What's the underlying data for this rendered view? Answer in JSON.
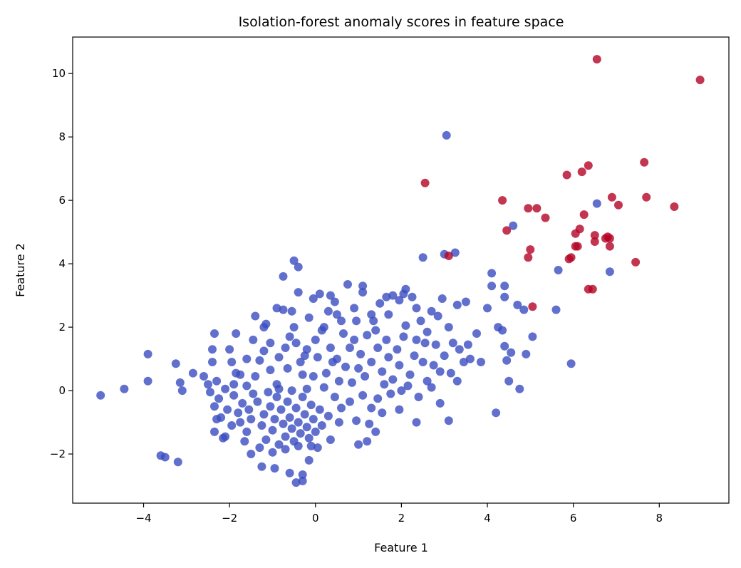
{
  "chart_data": {
    "type": "scatter",
    "title": "Isolation-forest anomaly scores in feature space",
    "xlabel": "Feature 1",
    "ylabel": "Feature 2",
    "xlim": [
      -5.65,
      9.62
    ],
    "ylim": [
      -3.55,
      11.15
    ],
    "xticks": [
      -4,
      -2,
      0,
      2,
      4,
      6,
      8
    ],
    "yticks": [
      -2,
      0,
      2,
      4,
      6,
      8,
      10
    ],
    "xtick_labels": [
      "−4",
      "−2",
      "0",
      "2",
      "4",
      "6",
      "8"
    ],
    "ytick_labels": [
      "−2",
      "0",
      "2",
      "4",
      "6",
      "8",
      "10"
    ],
    "grid": false,
    "legend": "none",
    "colors": {
      "normal": "#3b4cc0",
      "anomaly": "#b40426"
    },
    "series": [
      {
        "class": "normal",
        "color": "#3b4cc0",
        "points": [
          [
            -5.0,
            -0.15
          ],
          [
            -4.45,
            0.05
          ],
          [
            -3.9,
            1.15
          ],
          [
            -3.9,
            0.3
          ],
          [
            -3.6,
            -2.05
          ],
          [
            -3.5,
            -2.1
          ],
          [
            -3.25,
            0.85
          ],
          [
            -3.2,
            -2.25
          ],
          [
            -3.15,
            0.25
          ],
          [
            -3.1,
            0.0
          ],
          [
            -2.85,
            0.55
          ],
          [
            -2.6,
            0.45
          ],
          [
            -2.5,
            0.2
          ],
          [
            -2.4,
            1.3
          ],
          [
            -2.35,
            1.8
          ],
          [
            -2.4,
            0.9
          ],
          [
            -2.3,
            0.3
          ],
          [
            -2.45,
            -0.05
          ],
          [
            -2.35,
            -0.5
          ],
          [
            -2.3,
            -0.9
          ],
          [
            -2.35,
            -1.3
          ],
          [
            -2.15,
            -1.5
          ],
          [
            -2.0,
            1.3
          ],
          [
            -1.95,
            0.9
          ],
          [
            -1.9,
            0.2
          ],
          [
            -1.85,
            1.8
          ],
          [
            -1.75,
            0.5
          ],
          [
            -1.6,
            1.0
          ],
          [
            -1.45,
            1.6
          ],
          [
            -1.4,
            2.35
          ],
          [
            -1.2,
            2.0
          ],
          [
            -1.15,
            2.1
          ],
          [
            -1.05,
            1.5
          ],
          [
            -0.9,
            2.6
          ],
          [
            -0.75,
            3.6
          ],
          [
            -0.75,
            2.55
          ],
          [
            -0.6,
            1.7
          ],
          [
            -0.5,
            2.0
          ],
          [
            -0.55,
            2.5
          ],
          [
            -0.5,
            4.1
          ],
          [
            -0.4,
            3.9
          ],
          [
            -0.4,
            3.1
          ],
          [
            -0.2,
            1.3
          ],
          [
            -0.05,
            2.9
          ],
          [
            0.1,
            3.05
          ],
          [
            0.2,
            2.0
          ],
          [
            0.3,
            2.5
          ],
          [
            0.45,
            2.8
          ],
          [
            0.6,
            2.2
          ],
          [
            0.75,
            3.35
          ],
          [
            0.9,
            2.6
          ],
          [
            1.1,
            3.3
          ],
          [
            1.1,
            3.1
          ],
          [
            1.3,
            2.4
          ],
          [
            1.5,
            2.75
          ],
          [
            1.65,
            2.95
          ],
          [
            1.8,
            3.0
          ],
          [
            1.95,
            2.85
          ],
          [
            2.05,
            3.05
          ],
          [
            2.1,
            3.2
          ],
          [
            2.25,
            2.95
          ],
          [
            2.45,
            2.2
          ],
          [
            2.5,
            4.2
          ],
          [
            2.55,
            1.5
          ],
          [
            2.7,
            2.5
          ],
          [
            2.85,
            2.35
          ],
          [
            2.95,
            2.9
          ],
          [
            3.0,
            4.3
          ],
          [
            3.05,
            8.05
          ],
          [
            3.25,
            4.35
          ],
          [
            3.3,
            2.7
          ],
          [
            3.1,
            2.0
          ],
          [
            3.2,
            1.5
          ],
          [
            3.35,
            1.3
          ],
          [
            3.5,
            2.8
          ],
          [
            3.6,
            1.0
          ],
          [
            3.75,
            1.8
          ],
          [
            3.85,
            0.9
          ],
          [
            4.0,
            2.6
          ],
          [
            4.1,
            3.3
          ],
          [
            4.1,
            3.7
          ],
          [
            4.25,
            2.0
          ],
          [
            4.35,
            1.9
          ],
          [
            4.4,
            3.3
          ],
          [
            4.4,
            2.95
          ],
          [
            4.4,
            1.4
          ],
          [
            4.45,
            0.95
          ],
          [
            4.5,
            0.3
          ],
          [
            4.55,
            1.2
          ],
          [
            4.2,
            -0.7
          ],
          [
            4.7,
            2.7
          ],
          [
            4.75,
            0.05
          ],
          [
            4.85,
            2.55
          ],
          [
            4.9,
            1.15
          ],
          [
            5.05,
            1.7
          ],
          [
            4.6,
            5.2
          ],
          [
            5.6,
            2.55
          ],
          [
            5.65,
            3.8
          ],
          [
            5.95,
            0.85
          ],
          [
            6.55,
            5.9
          ],
          [
            6.85,
            3.75
          ],
          [
            2.75,
            0.8
          ],
          [
            2.9,
            -0.4
          ],
          [
            3.1,
            -0.95
          ],
          [
            2.35,
            -1.0
          ],
          [
            1.95,
            -0.6
          ],
          [
            1.55,
            -0.7
          ],
          [
            1.3,
            -0.55
          ],
          [
            1.0,
            -1.7
          ],
          [
            1.2,
            -1.6
          ],
          [
            1.4,
            -1.3
          ],
          [
            0.55,
            -1.0
          ],
          [
            0.35,
            -1.55
          ],
          [
            0.05,
            -1.8
          ],
          [
            -0.15,
            -2.2
          ],
          [
            -0.3,
            -2.65
          ],
          [
            -0.45,
            -2.9
          ],
          [
            -0.3,
            -2.85
          ],
          [
            -0.6,
            -2.6
          ],
          [
            -0.95,
            -2.45
          ],
          [
            -1.25,
            -2.4
          ],
          [
            -1.5,
            -2.0
          ],
          [
            -2.1,
            -1.45
          ],
          [
            -1.9,
            -0.15
          ],
          [
            -1.4,
            0.45
          ],
          [
            -0.9,
            0.2
          ],
          [
            -0.3,
            0.5
          ],
          [
            0.2,
            0.1
          ],
          [
            0.5,
            1.0
          ],
          [
            1.0,
            0.7
          ],
          [
            1.6,
            0.2
          ],
          [
            2.2,
            0.5
          ],
          [
            2.6,
            0.3
          ],
          [
            0.9,
            1.6
          ],
          [
            1.4,
            1.9
          ],
          [
            1.9,
            1.3
          ],
          [
            2.3,
            1.1
          ],
          [
            0.0,
            1.6
          ],
          [
            -0.35,
            0.9
          ],
          [
            -0.85,
            1.05
          ],
          [
            -1.55,
            -0.6
          ],
          [
            -1.6,
            -1.3
          ],
          [
            -1.5,
            -0.9
          ],
          [
            -1.35,
            -0.35
          ],
          [
            -1.25,
            -1.1
          ],
          [
            -1.2,
            -0.75
          ],
          [
            -1.15,
            -1.55
          ],
          [
            -1.05,
            -0.5
          ],
          [
            -1.0,
            -1.25
          ],
          [
            -0.95,
            -0.9
          ],
          [
            -0.9,
            -0.2
          ],
          [
            -0.85,
            -1.7
          ],
          [
            -0.8,
            -0.6
          ],
          [
            -0.75,
            -1.05
          ],
          [
            -0.7,
            -1.45
          ],
          [
            -0.65,
            -0.35
          ],
          [
            -0.6,
            -0.85
          ],
          [
            -0.55,
            -1.2
          ],
          [
            -0.5,
            -1.6
          ],
          [
            -0.45,
            -0.55
          ],
          [
            -0.4,
            -1.0
          ],
          [
            -0.35,
            -1.35
          ],
          [
            -0.3,
            -0.2
          ],
          [
            -0.25,
            -0.75
          ],
          [
            -0.2,
            -1.15
          ],
          [
            -0.15,
            -1.5
          ],
          [
            -0.1,
            -0.45
          ],
          [
            -0.05,
            -0.9
          ],
          [
            0.0,
            -1.3
          ],
          [
            -1.7,
            -0.4
          ],
          [
            -1.75,
            -1.0
          ],
          [
            -1.8,
            -0.7
          ],
          [
            -1.65,
            -1.6
          ],
          [
            -1.45,
            -0.1
          ],
          [
            -1.3,
            -1.8
          ],
          [
            -1.1,
            -0.05
          ],
          [
            -1.0,
            -1.95
          ],
          [
            -0.85,
            0.05
          ],
          [
            -0.7,
            -1.85
          ],
          [
            -0.55,
            0.0
          ],
          [
            -0.4,
            -1.75
          ],
          [
            -0.2,
            0.05
          ],
          [
            -0.1,
            -1.75
          ],
          [
            0.1,
            -0.6
          ],
          [
            0.15,
            -1.1
          ],
          [
            -2.05,
            -0.6
          ],
          [
            -1.95,
            -1.1
          ],
          [
            -2.2,
            -0.85
          ],
          [
            -1.6,
            0.15
          ],
          [
            0.25,
            0.55
          ],
          [
            0.4,
            0.9
          ],
          [
            0.55,
            0.3
          ],
          [
            0.7,
            0.75
          ],
          [
            0.85,
            0.25
          ],
          [
            1.05,
            1.15
          ],
          [
            1.15,
            0.45
          ],
          [
            1.3,
            0.9
          ],
          [
            1.45,
            1.35
          ],
          [
            1.55,
            0.6
          ],
          [
            1.7,
            1.05
          ],
          [
            1.8,
            0.35
          ],
          [
            1.95,
            0.8
          ],
          [
            2.05,
            1.7
          ],
          [
            2.15,
            0.15
          ],
          [
            0.35,
            1.35
          ],
          [
            0.65,
            1.8
          ],
          [
            0.8,
            1.35
          ],
          [
            1.2,
            1.75
          ],
          [
            1.65,
            1.6
          ],
          [
            2.35,
            1.6
          ],
          [
            2.5,
            0.9
          ],
          [
            0.45,
            -0.2
          ],
          [
            0.8,
            -0.35
          ],
          [
            1.1,
            -0.15
          ],
          [
            1.45,
            -0.25
          ],
          [
            1.75,
            -0.1
          ],
          [
            2.0,
            0.0
          ],
          [
            2.4,
            -0.2
          ],
          [
            0.3,
            -0.8
          ],
          [
            0.6,
            -0.55
          ],
          [
            0.95,
            -0.95
          ],
          [
            1.25,
            -1.05
          ],
          [
            -0.05,
            0.45
          ],
          [
            0.05,
            1.05
          ],
          [
            0.15,
            1.9
          ],
          [
            0.5,
            2.4
          ],
          [
            0.95,
            2.2
          ],
          [
            1.35,
            2.2
          ],
          [
            1.7,
            2.4
          ],
          [
            2.1,
            2.05
          ],
          [
            2.35,
            2.6
          ],
          [
            2.6,
            1.85
          ],
          [
            2.8,
            1.45
          ],
          [
            3.0,
            1.1
          ],
          [
            3.15,
            0.55
          ],
          [
            3.3,
            0.3
          ],
          [
            3.45,
            0.9
          ],
          [
            2.7,
            0.1
          ],
          [
            2.9,
            0.6
          ],
          [
            3.55,
            1.45
          ],
          [
            -1.05,
            0.65
          ],
          [
            -0.65,
            0.7
          ],
          [
            -0.25,
            1.1
          ],
          [
            -0.7,
            1.35
          ],
          [
            -1.3,
            0.95
          ],
          [
            -1.85,
            0.55
          ],
          [
            -2.1,
            0.05
          ],
          [
            -2.25,
            -0.25
          ],
          [
            -1.2,
            1.25
          ],
          [
            -0.45,
            1.5
          ],
          [
            -0.15,
            2.3
          ],
          [
            0.35,
            3.0
          ]
        ]
      },
      {
        "class": "anomaly",
        "color": "#b40426",
        "points": [
          [
            2.55,
            6.55
          ],
          [
            3.1,
            4.25
          ],
          [
            4.35,
            6.0
          ],
          [
            4.45,
            5.05
          ],
          [
            4.95,
            5.75
          ],
          [
            5.0,
            4.45
          ],
          [
            4.95,
            4.2
          ],
          [
            5.05,
            2.65
          ],
          [
            5.15,
            5.75
          ],
          [
            5.35,
            5.45
          ],
          [
            5.85,
            6.8
          ],
          [
            5.9,
            4.15
          ],
          [
            5.95,
            4.2
          ],
          [
            6.05,
            4.55
          ],
          [
            6.05,
            4.95
          ],
          [
            6.1,
            4.55
          ],
          [
            6.15,
            5.1
          ],
          [
            6.2,
            6.9
          ],
          [
            6.25,
            5.55
          ],
          [
            6.35,
            7.1
          ],
          [
            6.35,
            3.2
          ],
          [
            6.45,
            3.2
          ],
          [
            6.5,
            4.9
          ],
          [
            6.5,
            4.7
          ],
          [
            6.55,
            10.45
          ],
          [
            6.75,
            4.8
          ],
          [
            6.8,
            4.85
          ],
          [
            6.85,
            4.8
          ],
          [
            6.85,
            4.55
          ],
          [
            6.9,
            6.1
          ],
          [
            7.05,
            5.85
          ],
          [
            7.45,
            4.05
          ],
          [
            7.65,
            7.2
          ],
          [
            7.7,
            6.1
          ],
          [
            8.35,
            5.8
          ],
          [
            8.95,
            9.8
          ]
        ]
      }
    ]
  }
}
